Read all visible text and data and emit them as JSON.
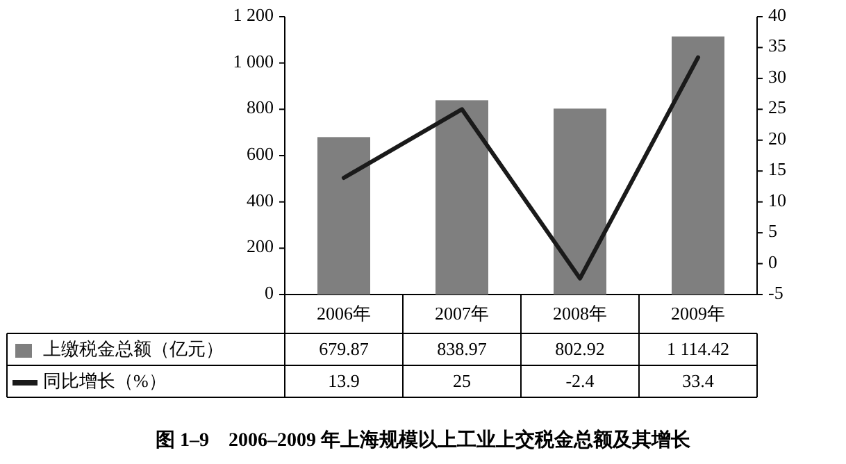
{
  "chart_data": {
    "type": "bar",
    "title": "图 1–9　2006–2009 年上海规模以上工业上交税金总额及其增长",
    "categories": [
      "2006年",
      "2007年",
      "2008年",
      "2009年"
    ],
    "series": [
      {
        "name": "上缴税金总额（亿元）",
        "color": "#7f7f7f",
        "values": [
          679.87,
          838.97,
          802.92,
          1114.42
        ],
        "value_labels": [
          "679.87",
          "838.97",
          "802.92",
          "1 114.42"
        ]
      },
      {
        "name": "同比增长（%）",
        "type": "line",
        "axis": "y2",
        "color": "#1a1a1a",
        "values": [
          13.9,
          25,
          -2.4,
          33.4
        ],
        "value_labels": [
          "13.9",
          "25",
          "-2.4",
          "33.4"
        ]
      }
    ],
    "ylim": [
      0,
      1200
    ],
    "yticks": [
      0,
      200,
      400,
      600,
      800,
      {
        "value": 1000,
        "label": "1 000"
      },
      {
        "value": 1200,
        "label": "1 200"
      }
    ],
    "y2lim": [
      -5,
      40
    ],
    "y2ticks": [
      -5,
      0,
      5,
      10,
      15,
      20,
      25,
      30,
      35,
      40
    ],
    "legend": "bottom",
    "grid": false,
    "marker": "none",
    "line_style": "solid"
  }
}
